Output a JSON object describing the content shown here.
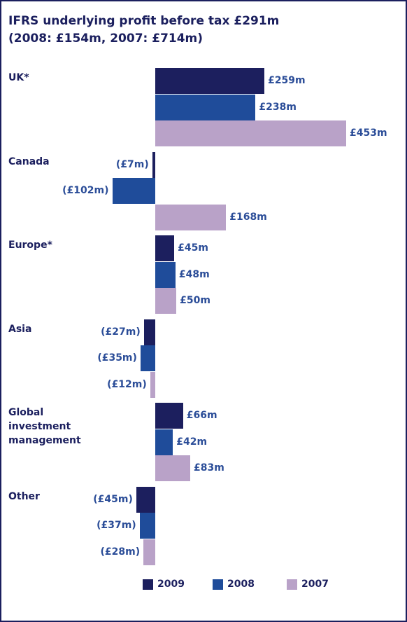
{
  "chart_data": {
    "type": "bar",
    "orientation": "horizontal",
    "title": "IFRS underlying profit before tax £291m",
    "subtitle": "(2008: £154m, 2007: £714m)",
    "categories": [
      "UK*",
      "Canada",
      "Europe*",
      "Asia",
      "Global investment management",
      "Other"
    ],
    "series": [
      {
        "name": "2009",
        "color": "#1c1f5e",
        "values": [
          259,
          -7,
          45,
          -27,
          66,
          -45
        ],
        "value_labels": [
          "£259m",
          "(£7m)",
          "£45m",
          "(£27m)",
          "£66m",
          "(£45m)"
        ]
      },
      {
        "name": "2008",
        "color": "#1f4c9a",
        "values": [
          238,
          -102,
          48,
          -35,
          42,
          -37
        ],
        "value_labels": [
          "£238m",
          "(£102m)",
          "£48m",
          "(£35m)",
          "£42m",
          "(£37m)"
        ]
      },
      {
        "name": "2007",
        "color": "#b9a2c8",
        "values": [
          453,
          168,
          50,
          -12,
          83,
          -28
        ],
        "value_labels": [
          "£453m",
          "£168m",
          "£50m",
          "(£12m)",
          "£83m",
          "(£28m)"
        ]
      }
    ],
    "legend": "bottom"
  }
}
